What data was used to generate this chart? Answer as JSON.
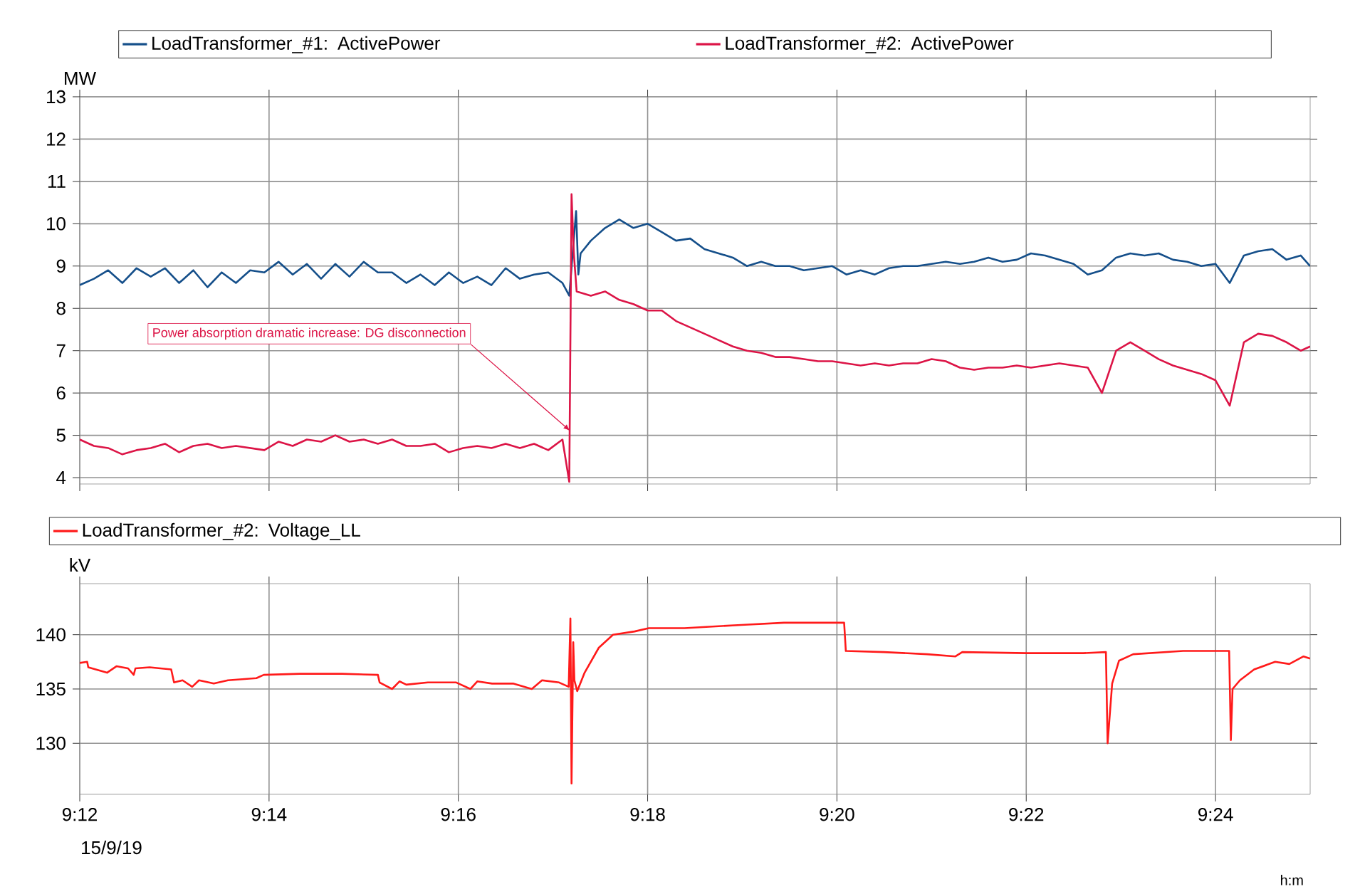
{
  "chart_data": [
    {
      "type": "line",
      "ylabel": "MW",
      "grid": true,
      "legend": "top",
      "tick_labels": "y",
      "xlim": [
        9.2,
        9.416667
      ],
      "ylim": [
        3.85,
        13
      ],
      "yticks": [
        4,
        5,
        6,
        7,
        8,
        9,
        10,
        11,
        12,
        13
      ],
      "xticks": [
        {
          "value": 9.2,
          "label": null
        },
        {
          "value": 9.233333,
          "label": null
        },
        {
          "value": 9.266667,
          "label": null
        },
        {
          "value": 9.3,
          "label": null
        },
        {
          "value": 9.333333,
          "label": null
        },
        {
          "value": 9.366667,
          "label": null
        },
        {
          "value": 9.4,
          "label": null
        }
      ],
      "x": [
        9.2,
        9.2025,
        9.205,
        9.2075,
        9.21,
        9.2125,
        9.215,
        9.2175,
        9.22,
        9.2225,
        9.225,
        9.2275,
        9.23,
        9.2325,
        9.235,
        9.2375,
        9.24,
        9.2425,
        9.245,
        9.2475,
        9.25,
        9.2525,
        9.255,
        9.2575,
        9.26,
        9.2625,
        9.265,
        9.2675,
        9.27,
        9.2725,
        9.275,
        9.2775,
        9.28,
        9.2825,
        9.285,
        9.2862,
        9.2866,
        9.287,
        9.2875,
        9.29,
        9.2925,
        9.295,
        9.2975,
        9.3,
        9.3025,
        9.305,
        9.3075,
        9.31,
        9.3125,
        9.315,
        9.3175,
        9.32,
        9.3225,
        9.325,
        9.3275,
        9.33,
        9.3325,
        9.335,
        9.3375,
        9.34,
        9.3425,
        9.345,
        9.3475,
        9.35,
        9.3525,
        9.355,
        9.3575,
        9.36,
        9.3625,
        9.365,
        9.3675,
        9.37,
        9.3725,
        9.375,
        9.3775,
        9.38,
        9.3825,
        9.385,
        9.3875,
        9.39,
        9.3925,
        9.395,
        9.3975,
        9.4,
        9.4025,
        9.405,
        9.4075,
        9.41,
        9.4125,
        9.415,
        9.416667
      ],
      "series": [
        {
          "name": "LoadTransformer_#1: ActivePower",
          "color": "#154f8a",
          "x": [
            9.2,
            9.2025,
            9.205,
            9.2075,
            9.21,
            9.2125,
            9.215,
            9.2175,
            9.22,
            9.2225,
            9.225,
            9.2275,
            9.23,
            9.2325,
            9.235,
            9.2375,
            9.24,
            9.2425,
            9.245,
            9.2475,
            9.25,
            9.2525,
            9.255,
            9.2575,
            9.26,
            9.2625,
            9.265,
            9.2675,
            9.27,
            9.2725,
            9.275,
            9.2775,
            9.28,
            9.2825,
            9.285,
            9.2862,
            9.2874,
            9.2878,
            9.2882,
            9.29,
            9.2925,
            9.295,
            9.2975,
            9.3,
            9.3025,
            9.305,
            9.3075,
            9.31,
            9.3125,
            9.315,
            9.3175,
            9.32,
            9.3225,
            9.325,
            9.3275,
            9.33,
            9.3325,
            9.335,
            9.3375,
            9.34,
            9.3425,
            9.345,
            9.3475,
            9.35,
            9.3525,
            9.355,
            9.3575,
            9.36,
            9.3625,
            9.365,
            9.3675,
            9.37,
            9.3725,
            9.375,
            9.3775,
            9.38,
            9.3825,
            9.385,
            9.3875,
            9.39,
            9.3925,
            9.395,
            9.3975,
            9.4,
            9.4025,
            9.405,
            9.4075,
            9.41,
            9.4125,
            9.415,
            9.416667
          ],
          "values": [
            8.55,
            8.7,
            8.9,
            8.6,
            8.95,
            8.75,
            8.95,
            8.6,
            8.9,
            8.5,
            8.85,
            8.6,
            8.9,
            8.85,
            9.1,
            8.8,
            9.05,
            8.7,
            9.05,
            8.75,
            9.1,
            8.85,
            8.85,
            8.6,
            8.8,
            8.55,
            8.85,
            8.6,
            8.75,
            8.55,
            8.95,
            8.7,
            8.8,
            8.85,
            8.6,
            8.3,
            10.3,
            8.8,
            9.3,
            9.6,
            9.9,
            10.1,
            9.9,
            10.0,
            9.8,
            9.6,
            9.65,
            9.4,
            9.3,
            9.2,
            9.0,
            9.1,
            9.0,
            9.0,
            8.9,
            8.95,
            9.0,
            8.8,
            8.9,
            8.8,
            8.95,
            9.0,
            9.0,
            9.05,
            9.1,
            9.05,
            9.1,
            9.2,
            9.1,
            9.15,
            9.3,
            9.25,
            9.15,
            9.05,
            8.8,
            8.9,
            9.2,
            9.3,
            9.25,
            9.3,
            9.15,
            9.1,
            9.0,
            9.05,
            8.6,
            9.25,
            9.35,
            9.4,
            9.15,
            9.25,
            9.0
          ]
        },
        {
          "name": "LoadTransformer_#2: ActivePower",
          "color": "#dc1446",
          "values": [
            4.9,
            4.75,
            4.7,
            4.55,
            4.65,
            4.7,
            4.8,
            4.6,
            4.75,
            4.8,
            4.7,
            4.75,
            4.7,
            4.65,
            4.85,
            4.75,
            4.9,
            4.85,
            5.0,
            4.85,
            4.9,
            4.8,
            4.9,
            4.75,
            4.75,
            4.8,
            4.6,
            4.7,
            4.75,
            4.7,
            4.8,
            4.7,
            4.8,
            4.65,
            4.9,
            3.9,
            10.7,
            9.3,
            8.4,
            8.3,
            8.4,
            8.2,
            8.1,
            7.95,
            7.95,
            7.7,
            7.55,
            7.4,
            7.25,
            7.1,
            7.0,
            6.95,
            6.85,
            6.85,
            6.8,
            6.75,
            6.75,
            6.7,
            6.65,
            6.7,
            6.65,
            6.7,
            6.7,
            6.8,
            6.75,
            6.6,
            6.55,
            6.6,
            6.6,
            6.65,
            6.6,
            6.65,
            6.7,
            6.65,
            6.6,
            6.0,
            7.0,
            7.2,
            7.0,
            6.8,
            6.65,
            6.55,
            6.45,
            6.3,
            5.7,
            7.2,
            7.4,
            7.35,
            7.2,
            7.0,
            7.1
          ]
        }
      ],
      "annotations": [
        {
          "text": "Power absorption dramatic increase: DG disconnection",
          "x": 9.2864,
          "y": 5.1
        }
      ]
    },
    {
      "type": "line",
      "ylabel": "kV",
      "xlabel": "h:m",
      "grid": true,
      "legend": "top",
      "xlim": [
        9.2,
        9.416667
      ],
      "ylim": [
        125.3,
        144.7
      ],
      "yticks": [
        130,
        135,
        140
      ],
      "xticks": [
        {
          "value": 9.2,
          "label": "9:12"
        },
        {
          "value": 9.233333,
          "label": "9:14"
        },
        {
          "value": 9.266667,
          "label": "9:16"
        },
        {
          "value": 9.3,
          "label": "9:18"
        },
        {
          "value": 9.333333,
          "label": "9:20"
        },
        {
          "value": 9.366667,
          "label": "9:22"
        },
        {
          "value": 9.4,
          "label": "9:24"
        }
      ],
      "x": [
        9.2,
        9.2013,
        9.2015,
        9.2048,
        9.2065,
        9.2085,
        9.2095,
        9.2098,
        9.2123,
        9.2161,
        9.2166,
        9.2181,
        9.2198,
        9.221,
        9.2236,
        9.2261,
        9.2311,
        9.2324,
        9.2387,
        9.2462,
        9.2525,
        9.2528,
        9.255,
        9.2563,
        9.2575,
        9.2613,
        9.2663,
        9.2688,
        9.27,
        9.2726,
        9.2763,
        9.2796,
        9.2814,
        9.2844,
        9.2861,
        9.2864,
        9.2866,
        9.2869,
        9.2871,
        9.2876,
        9.2889,
        9.2914,
        9.2939,
        9.2977,
        9.3002,
        9.3065,
        9.3165,
        9.324,
        9.3346,
        9.3349,
        9.3416,
        9.3492,
        9.3542,
        9.3554,
        9.3667,
        9.3767,
        9.3807,
        9.381,
        9.3818,
        9.383,
        9.3855,
        9.3943,
        9.4024,
        9.4027,
        9.403,
        9.4043,
        9.4068,
        9.4105,
        9.413,
        9.4155,
        9.416667
      ],
      "series": [
        {
          "name": "LoadTransformer_#2: Voltage_LL",
          "color": "#ff1a1a",
          "values": [
            137.4,
            137.5,
            137.0,
            136.5,
            137.1,
            136.9,
            136.3,
            136.9,
            137.0,
            136.8,
            135.6,
            135.8,
            135.2,
            135.8,
            135.5,
            135.8,
            136.0,
            136.3,
            136.4,
            136.4,
            136.3,
            135.6,
            135.0,
            135.7,
            135.4,
            135.6,
            135.6,
            135.0,
            135.7,
            135.5,
            135.5,
            135.0,
            135.8,
            135.6,
            135.2,
            141.5,
            126.3,
            139.3,
            135.8,
            134.8,
            136.5,
            138.8,
            140.0,
            140.3,
            140.6,
            140.6,
            140.9,
            141.1,
            141.1,
            138.5,
            138.4,
            138.2,
            138.0,
            138.4,
            138.3,
            138.3,
            138.4,
            130.0,
            135.5,
            137.6,
            138.2,
            138.5,
            138.5,
            130.3,
            135.0,
            135.8,
            136.8,
            137.5,
            137.3,
            138.0,
            137.8
          ]
        }
      ],
      "annotations": [
        "15/9/19"
      ]
    }
  ]
}
